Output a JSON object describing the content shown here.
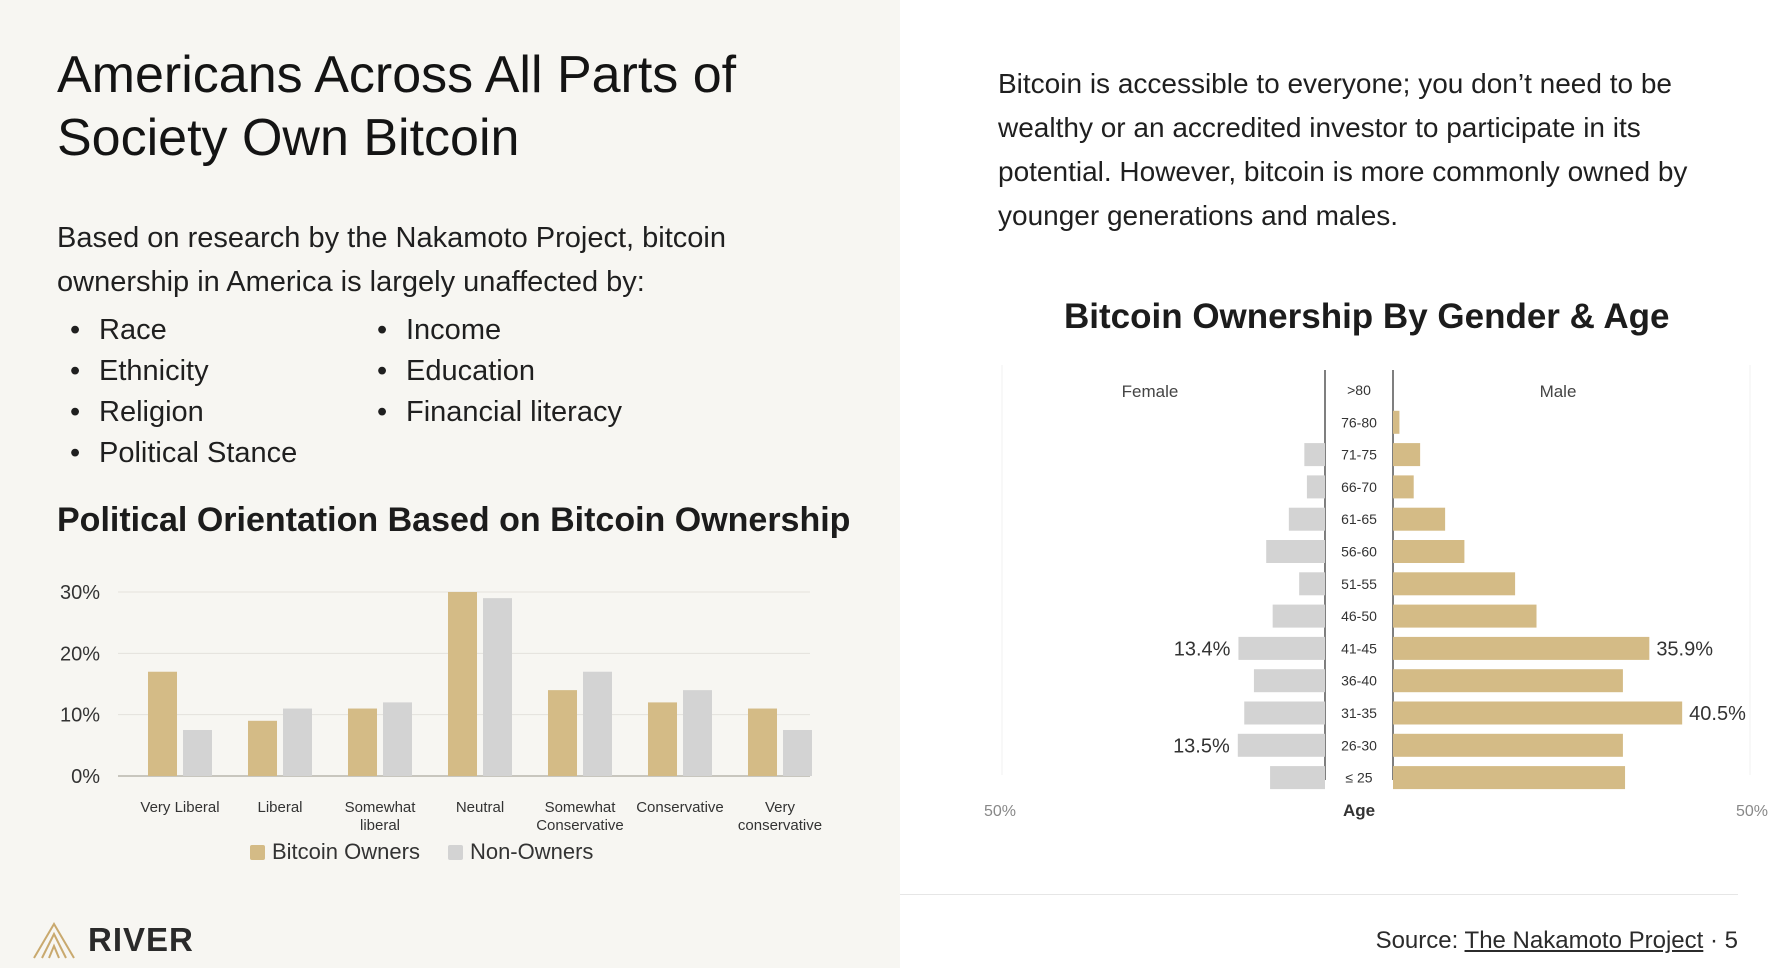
{
  "slide": {
    "title": "Americans Across All Parts of Society Own Bitcoin",
    "intro": "Based on research by the Nakamoto Project, bitcoin ownership in America is largely unaffected by:",
    "bullets_col1": [
      "Race",
      "Ethnicity",
      "Religion",
      "Political Stance"
    ],
    "bullets_col2": [
      "Income",
      "Education",
      "Financial literacy"
    ],
    "right_text": "Bitcoin is accessible to everyone; you don’t need to be wealthy or an accredited investor to participate in its potential. However, bitcoin is more commonly owned by younger generations and males.",
    "brand": "RIVER",
    "source_label": "Source: ",
    "source_link": "The Nakamoto Project",
    "page_suffix": " · 5"
  },
  "colors": {
    "owners": "#d4bb86",
    "non_owners": "#d3d3d3",
    "male": "#d4bb86",
    "female": "#d3d3d3"
  },
  "chart_data": [
    {
      "type": "bar",
      "title": "Political Orientation Based on Bitcoin Ownership",
      "categories": [
        "Very Liberal",
        "Liberal",
        "Somewhat liberal",
        "Neutral",
        "Somewhat Conservative",
        "Conservative",
        "Very conservative"
      ],
      "series": [
        {
          "name": "Bitcoin Owners",
          "values": [
            17,
            9,
            11,
            30,
            14,
            12,
            11
          ]
        },
        {
          "name": "Non-Owners",
          "values": [
            7.5,
            11,
            12,
            29,
            17,
            14,
            7.5
          ]
        }
      ],
      "yticks": [
        "0%",
        "10%",
        "20%",
        "30%"
      ],
      "ylim": [
        0,
        30
      ],
      "grid": true,
      "legend": "bottom"
    },
    {
      "type": "bar",
      "title": "Bitcoin Ownership By Gender & Age",
      "orientation": "horizontal",
      "categories": [
        ">80",
        "76-80",
        "71-75",
        "66-70",
        "61-65",
        "56-60",
        "51-55",
        "46-50",
        "41-45",
        "36-40",
        "31-35",
        "26-30",
        "≤ 25"
      ],
      "series": [
        {
          "name": "Female",
          "values": [
            0,
            0,
            3.2,
            2.8,
            5.6,
            9.1,
            4.0,
            8.1,
            13.4,
            11.0,
            12.5,
            13.5,
            8.5
          ]
        },
        {
          "name": "Male",
          "values": [
            0,
            0.9,
            3.8,
            2.9,
            7.3,
            10.0,
            17.1,
            20.1,
            35.9,
            32.2,
            40.5,
            32.2,
            32.5
          ]
        }
      ],
      "data_labels": [
        {
          "category": "41-45",
          "series": "Female",
          "label": "13.4%"
        },
        {
          "category": "41-45",
          "series": "Male",
          "label": "35.9%"
        },
        {
          "category": "31-35",
          "series": "Male",
          "label": "40.5%"
        },
        {
          "category": "26-30",
          "series": "Female",
          "label": "13.5%"
        }
      ],
      "axis_label": "Age",
      "xlim_left_label": "50%",
      "xlim_right_label": "50%",
      "xlim": [
        0,
        50
      ]
    }
  ]
}
